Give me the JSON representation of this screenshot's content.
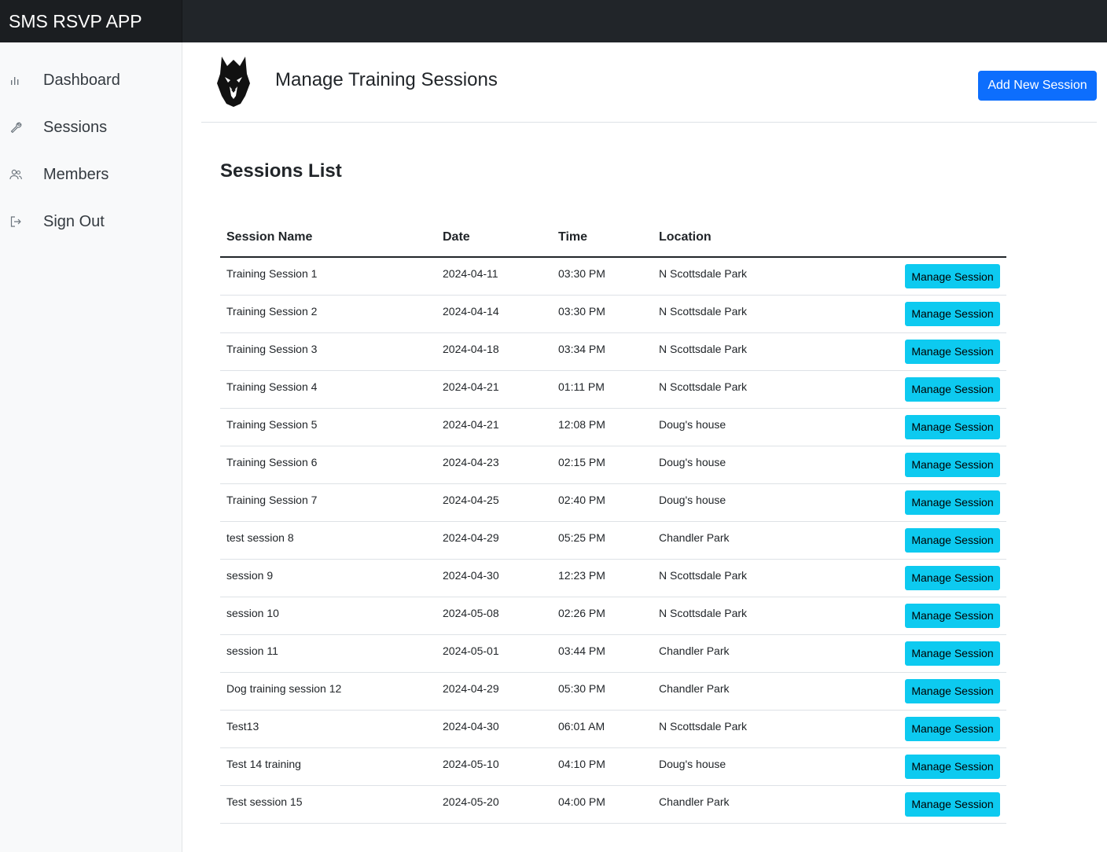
{
  "app": {
    "title": "SMS RSVP APP"
  },
  "sidebar": {
    "items": [
      {
        "label": "Dashboard",
        "icon": "bar-chart-icon"
      },
      {
        "label": "Sessions",
        "icon": "wrench-icon"
      },
      {
        "label": "Members",
        "icon": "people-icon"
      },
      {
        "label": "Sign Out",
        "icon": "sign-out-icon"
      }
    ]
  },
  "header": {
    "title": "Manage Training Sessions",
    "add_button": "Add New Session",
    "logo_icon": "wolf-logo-icon"
  },
  "sessions": {
    "title": "Sessions List",
    "columns": [
      "Session Name",
      "Date",
      "Time",
      "Location"
    ],
    "action_label": "Manage Session",
    "rows": [
      {
        "name": "Training Session 1",
        "date": "2024-04-11",
        "time": "03:30 PM",
        "location": "N Scottsdale Park"
      },
      {
        "name": "Training Session 2",
        "date": "2024-04-14",
        "time": "03:30 PM",
        "location": "N Scottsdale Park"
      },
      {
        "name": "Training Session 3",
        "date": "2024-04-18",
        "time": "03:34 PM",
        "location": "N Scottsdale Park"
      },
      {
        "name": "Training Session 4",
        "date": "2024-04-21",
        "time": "01:11 PM",
        "location": "N Scottsdale Park"
      },
      {
        "name": "Training Session 5",
        "date": "2024-04-21",
        "time": "12:08 PM",
        "location": "Doug's house"
      },
      {
        "name": "Training Session 6",
        "date": "2024-04-23",
        "time": "02:15 PM",
        "location": "Doug's house"
      },
      {
        "name": "Training Session 7",
        "date": "2024-04-25",
        "time": "02:40 PM",
        "location": "Doug's house"
      },
      {
        "name": "test session 8",
        "date": "2024-04-29",
        "time": "05:25 PM",
        "location": "Chandler Park"
      },
      {
        "name": "session 9",
        "date": "2024-04-30",
        "time": "12:23 PM",
        "location": "N Scottsdale Park"
      },
      {
        "name": "session 10",
        "date": "2024-05-08",
        "time": "02:26 PM",
        "location": "N Scottsdale Park"
      },
      {
        "name": "session 11",
        "date": "2024-05-01",
        "time": "03:44 PM",
        "location": "Chandler Park"
      },
      {
        "name": "Dog training session 12",
        "date": "2024-04-29",
        "time": "05:30 PM",
        "location": "Chandler Park"
      },
      {
        "name": "Test13",
        "date": "2024-04-30",
        "time": "06:01 AM",
        "location": "N Scottsdale Park"
      },
      {
        "name": "Test 14 training",
        "date": "2024-05-10",
        "time": "04:10 PM",
        "location": "Doug's house"
      },
      {
        "name": "Test session 15",
        "date": "2024-05-20",
        "time": "04:00 PM",
        "location": "Chandler Park"
      }
    ]
  },
  "colors": {
    "topbar": "#212529",
    "primary": "#0d6efd",
    "info": "#0dcaf0",
    "sidebar_bg": "#f8f9fa"
  }
}
